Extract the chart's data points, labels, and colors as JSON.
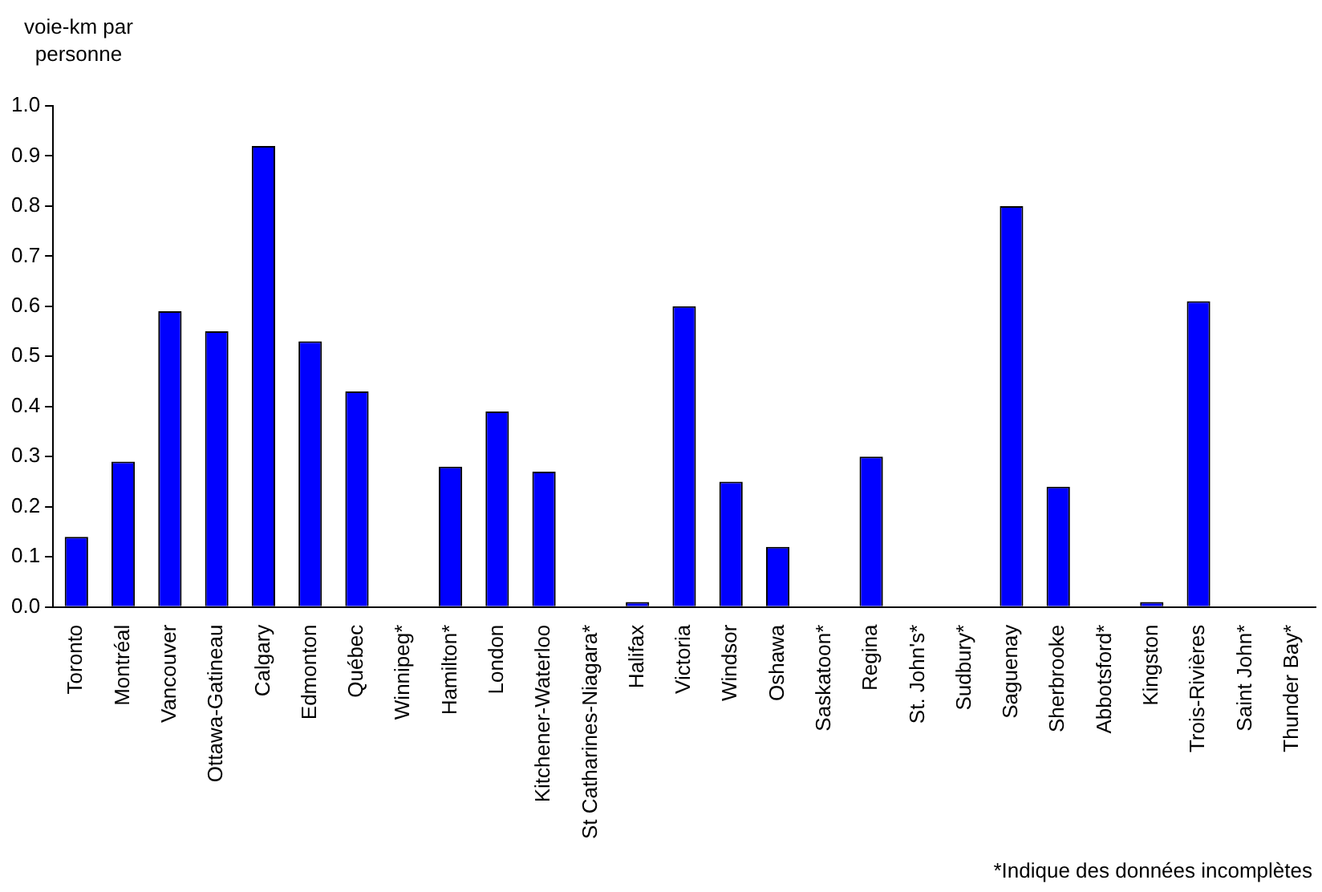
{
  "chart_data": {
    "type": "bar",
    "ylabel": "voie-km par personne",
    "categories": [
      "Toronto",
      "Montréal",
      "Vancouver",
      "Ottawa-Gatineau",
      "Calgary",
      "Edmonton",
      "Québec",
      "Winnipeg*",
      "Hamilton*",
      "London",
      "Kitchener-Waterloo",
      "St Catharines-Niagara*",
      "Halifax",
      "Victoria",
      "Windsor",
      "Oshawa",
      "Saskatoon*",
      "Regina",
      "St. John's*",
      "Sudbury*",
      "Saguenay",
      "Sherbrooke",
      "Abbotsford*",
      "Kingston",
      "Trois-Rivières",
      "Saint John*",
      "Thunder Bay*"
    ],
    "values": [
      0.14,
      0.29,
      0.59,
      0.55,
      0.92,
      0.53,
      0.43,
      null,
      0.28,
      0.39,
      0.27,
      null,
      0.01,
      0.6,
      0.25,
      0.12,
      null,
      0.3,
      null,
      null,
      0.8,
      0.24,
      null,
      0.01,
      0.61,
      null,
      null
    ],
    "color": "#0000ff",
    "ylim": [
      0,
      1
    ],
    "yticks": [
      {
        "value": 0,
        "label": "0.0"
      },
      0.1,
      0.2,
      0.3,
      0.4,
      0.5,
      0.6,
      0.7,
      0.8,
      0.9,
      {
        "value": 1,
        "label": "1.0"
      }
    ],
    "grid": false,
    "legend": false,
    "annotations": [
      "*Indique des données incomplètes"
    ]
  }
}
